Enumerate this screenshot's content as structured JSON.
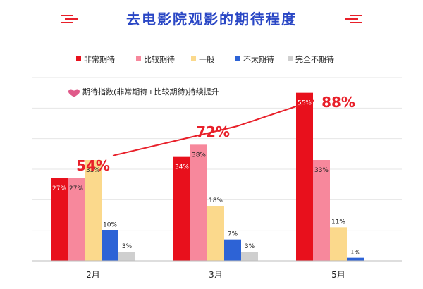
{
  "chart_data": {
    "type": "bar",
    "title": "去电影院观影的期待程度",
    "categories": [
      "2月",
      "3月",
      "5月"
    ],
    "series": [
      {
        "name": "非常期待",
        "values": [
          27,
          34,
          55
        ],
        "color": "#e8101c"
      },
      {
        "name": "比较期待",
        "values": [
          27,
          38,
          33
        ],
        "color": "#f7889c"
      },
      {
        "name": "一般",
        "values": [
          33,
          18,
          11
        ],
        "color": "#fbd98c"
      },
      {
        "name": "不太期待",
        "values": [
          10,
          7,
          1
        ],
        "color": "#2d63d6"
      },
      {
        "name": "完全不期待",
        "values": [
          3,
          3,
          null
        ],
        "color": "#cfcfcf"
      }
    ],
    "value_labels": [
      [
        "27%",
        "34%",
        "55%"
      ],
      [
        "27%",
        "38%",
        "33%"
      ],
      [
        "33%",
        "18%",
        "11%"
      ],
      [
        "10%",
        "7%",
        "1%"
      ],
      [
        "3%",
        "3%",
        ""
      ]
    ],
    "ylim": [
      0,
      60
    ],
    "grid": true,
    "legend_position": "top",
    "annotation": {
      "icon": "heart-icon",
      "text": "期待指数(非常期待+比较期待)持续提升",
      "trend_values": [
        54,
        72,
        88
      ],
      "trend_labels": [
        "54%",
        "72%",
        "88%"
      ],
      "trend_color": "#e8202a"
    }
  }
}
